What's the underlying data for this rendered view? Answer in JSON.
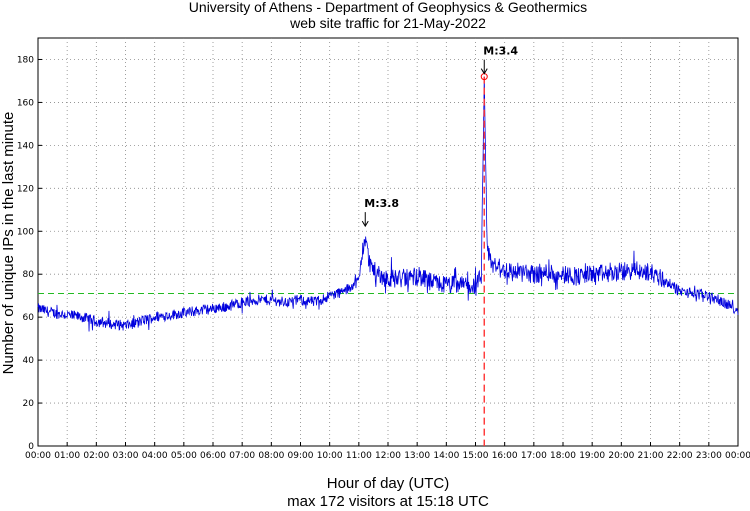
{
  "chart_data": {
    "type": "line",
    "title": "University of Athens - Department of Geophysics & Geothermics",
    "subtitle": "web site traffic for 21-May-2022",
    "xlabel": "Hour of day (UTC)",
    "ylabel": "Number of unique IPs in the last minute",
    "footer": "max 172 visitors at 15:18 UTC",
    "xlim": [
      0,
      24
    ],
    "ylim": [
      0,
      190
    ],
    "xticks": [
      "00:00",
      "01:00",
      "02:00",
      "03:00",
      "04:00",
      "05:00",
      "06:00",
      "07:00",
      "08:00",
      "09:00",
      "10:00",
      "11:00",
      "12:00",
      "13:00",
      "14:00",
      "15:00",
      "16:00",
      "17:00",
      "18:00",
      "19:00",
      "20:00",
      "21:00",
      "22:00",
      "23:00",
      "00:00"
    ],
    "yticks": [
      0,
      20,
      40,
      60,
      80,
      100,
      120,
      140,
      160,
      180
    ],
    "grid": true,
    "mean_line": {
      "y": 71,
      "color": "#22bb22"
    },
    "event_line": {
      "x": 15.3,
      "color": "#ff3333"
    },
    "annotations": [
      {
        "label": "M:3.8",
        "x": 11.22,
        "y": 101
      },
      {
        "label": "M:3.4",
        "x": 15.3,
        "y": 172
      }
    ],
    "series": [
      {
        "color": "#0000dd",
        "x": [
          0,
          0.5,
          1,
          1.5,
          2,
          2.5,
          3,
          3.5,
          4,
          4.5,
          5,
          5.5,
          6,
          6.5,
          7,
          7.5,
          8,
          8.5,
          9,
          9.5,
          10,
          10.5,
          11,
          11.2,
          11.35,
          11.6,
          12,
          12.5,
          13,
          13.5,
          14,
          14.5,
          15,
          15.2,
          15.3,
          15.4,
          15.6,
          16,
          16.5,
          17,
          17.5,
          18,
          18.5,
          19,
          19.5,
          20,
          20.5,
          21,
          21.5,
          22,
          22.5,
          23,
          23.5,
          24
        ],
        "y": [
          64,
          62,
          61,
          60,
          58,
          57,
          56,
          58,
          60,
          61,
          62,
          63,
          64,
          65,
          67,
          68,
          68,
          67,
          68,
          67,
          70,
          72,
          77,
          98,
          86,
          80,
          78,
          78,
          79,
          76,
          75,
          75,
          74,
          79,
          172,
          90,
          84,
          82,
          81,
          80,
          81,
          80,
          79,
          80,
          80,
          81,
          82,
          81,
          77,
          72,
          71,
          70,
          67,
          63
        ]
      }
    ],
    "max": {
      "value": 172,
      "time": "15:18"
    }
  }
}
